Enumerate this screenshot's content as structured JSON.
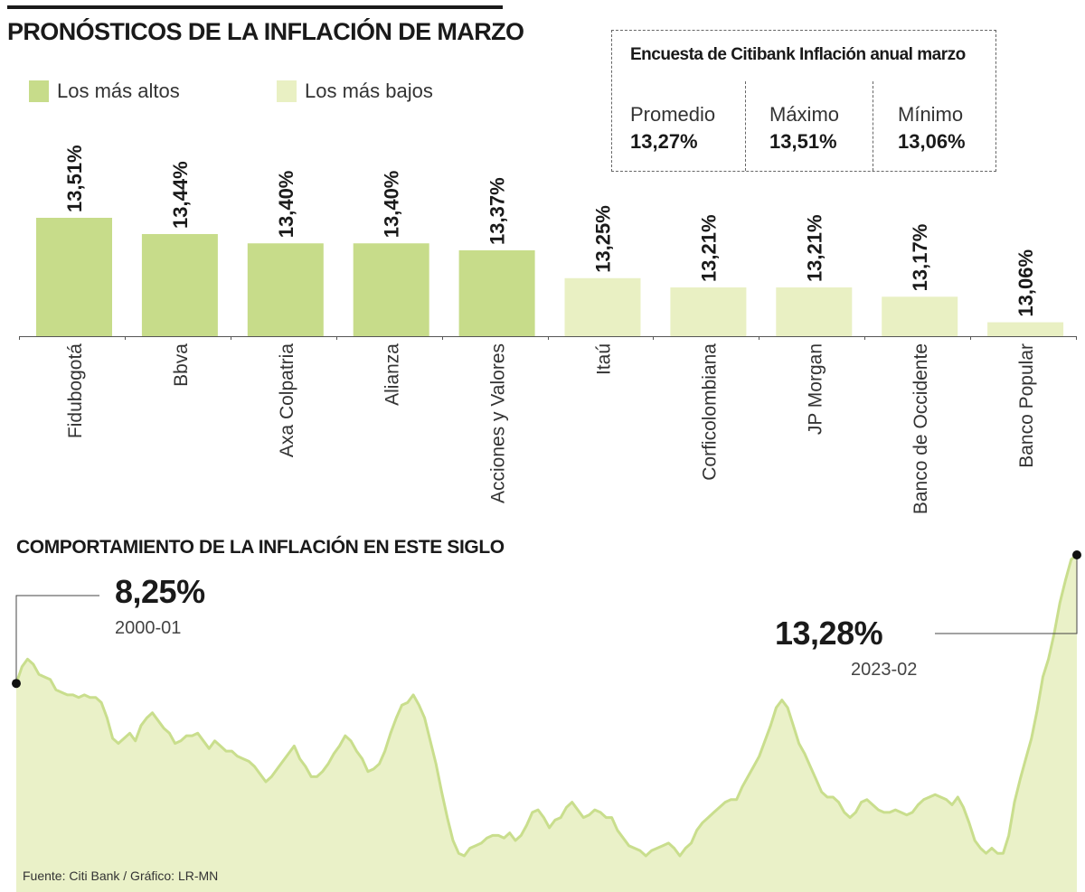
{
  "title": "PRONÓSTICOS DE LA INFLACIÓN DE MARZO",
  "legend": {
    "high_label": "Los más altos",
    "low_label": "Los más bajos"
  },
  "colors": {
    "high": "#c7dc8a",
    "low": "#e9f0c3",
    "area_fill": "#eaf1c8",
    "area_line": "#c9de8d",
    "text": "#1a1a1a"
  },
  "survey": {
    "title": "Encuesta de Citibank Inflación anual marzo",
    "stats": [
      {
        "label": "Promedio",
        "value": "13,27%"
      },
      {
        "label": "Máximo",
        "value": "13,51%"
      },
      {
        "label": "Mínimo",
        "value": "13,06%"
      }
    ]
  },
  "chart_data": [
    {
      "type": "bar",
      "title": "PRONÓSTICOS DE LA INFLACIÓN DE MARZO",
      "categories": [
        "Fidubogotá",
        "Bbva",
        "Axa Colpatria",
        "Alianza",
        "Acciones y Valores",
        "Itaú",
        "Corficolombiana",
        "JP Morgan",
        "Banco de Occidente",
        "Banco Popular"
      ],
      "values": [
        13.51,
        13.44,
        13.4,
        13.4,
        13.37,
        13.25,
        13.21,
        13.21,
        13.17,
        13.06
      ],
      "labels": [
        "13,51%",
        "13,44%",
        "13,40%",
        "13,40%",
        "13,37%",
        "13,25%",
        "13,21%",
        "13,21%",
        "13,17%",
        "13,06%"
      ],
      "groups": [
        "high",
        "high",
        "high",
        "high",
        "high",
        "low",
        "low",
        "low",
        "low",
        "low"
      ],
      "ylim": [
        13.0,
        13.51
      ],
      "xlabel": "",
      "ylabel": "",
      "grid": false,
      "legend": "top-left"
    },
    {
      "type": "area",
      "title": "COMPORTAMIENTO DE LA INFLACIÓN EN ESTE SIGLO",
      "x_start": "2000-01",
      "x_end": "2023-02",
      "series": [
        {
          "name": "Inflación anual",
          "values": [
            8.25,
            8.9,
            9.2,
            9.0,
            8.6,
            8.5,
            8.4,
            8.0,
            7.9,
            7.8,
            7.8,
            7.7,
            7.8,
            7.7,
            7.7,
            7.5,
            6.9,
            6.1,
            5.9,
            6.1,
            6.3,
            6.0,
            6.6,
            6.9,
            7.1,
            6.8,
            6.5,
            6.3,
            5.9,
            6.0,
            6.2,
            6.2,
            6.3,
            6.0,
            5.7,
            6.0,
            5.8,
            5.6,
            5.6,
            5.4,
            5.3,
            5.2,
            5.0,
            4.7,
            4.4,
            4.6,
            4.9,
            5.2,
            5.5,
            5.8,
            5.3,
            5.0,
            4.6,
            4.6,
            4.8,
            5.1,
            5.5,
            5.8,
            6.2,
            6.0,
            5.6,
            5.3,
            4.8,
            4.9,
            5.1,
            5.6,
            6.3,
            6.9,
            7.4,
            7.5,
            7.8,
            7.4,
            6.9,
            6.0,
            5.1,
            4.0,
            3.0,
            2.1,
            1.6,
            1.5,
            1.8,
            1.9,
            2.0,
            2.2,
            2.3,
            2.3,
            2.2,
            2.4,
            2.1,
            2.3,
            2.7,
            3.2,
            3.3,
            3.0,
            2.6,
            2.9,
            3.0,
            3.4,
            3.6,
            3.3,
            3.0,
            3.1,
            3.3,
            3.2,
            3.0,
            3.0,
            2.5,
            2.2,
            1.9,
            1.8,
            1.7,
            1.5,
            1.7,
            1.8,
            1.9,
            2.0,
            1.8,
            1.5,
            1.8,
            2.0,
            2.5,
            2.8,
            3.0,
            3.2,
            3.4,
            3.6,
            3.7,
            3.7,
            4.2,
            4.6,
            5.0,
            5.4,
            6.0,
            6.6,
            7.3,
            7.6,
            7.3,
            6.6,
            5.9,
            5.5,
            5.0,
            4.5,
            4.0,
            3.8,
            3.8,
            3.6,
            3.2,
            3.0,
            3.2,
            3.6,
            3.7,
            3.5,
            3.3,
            3.2,
            3.2,
            3.3,
            3.2,
            3.1,
            3.2,
            3.5,
            3.7,
            3.8,
            3.9,
            3.8,
            3.7,
            3.5,
            3.8,
            3.4,
            2.8,
            2.1,
            1.8,
            1.6,
            1.8,
            1.6,
            1.6,
            2.3,
            3.6,
            4.5,
            5.3,
            6.1,
            7.2,
            8.5,
            9.2,
            10.2,
            11.4,
            12.3,
            13.1,
            13.28
          ]
        }
      ],
      "annotations": [
        {
          "value": "8,25%",
          "date": "2000-01"
        },
        {
          "value": "13,28%",
          "date": "2023-02"
        }
      ],
      "ylim": [
        0,
        13.5
      ],
      "grid": false
    }
  ],
  "line_section": {
    "title": "COMPORTAMIENTO DE LA INFLACIÓN EN ESTE SIGLO",
    "start_value": "8,25%",
    "start_date": "2000-01",
    "end_value": "13,28%",
    "end_date": "2023-02"
  },
  "source": "Fuente: Citi Bank / Gráfico: LR-MN"
}
